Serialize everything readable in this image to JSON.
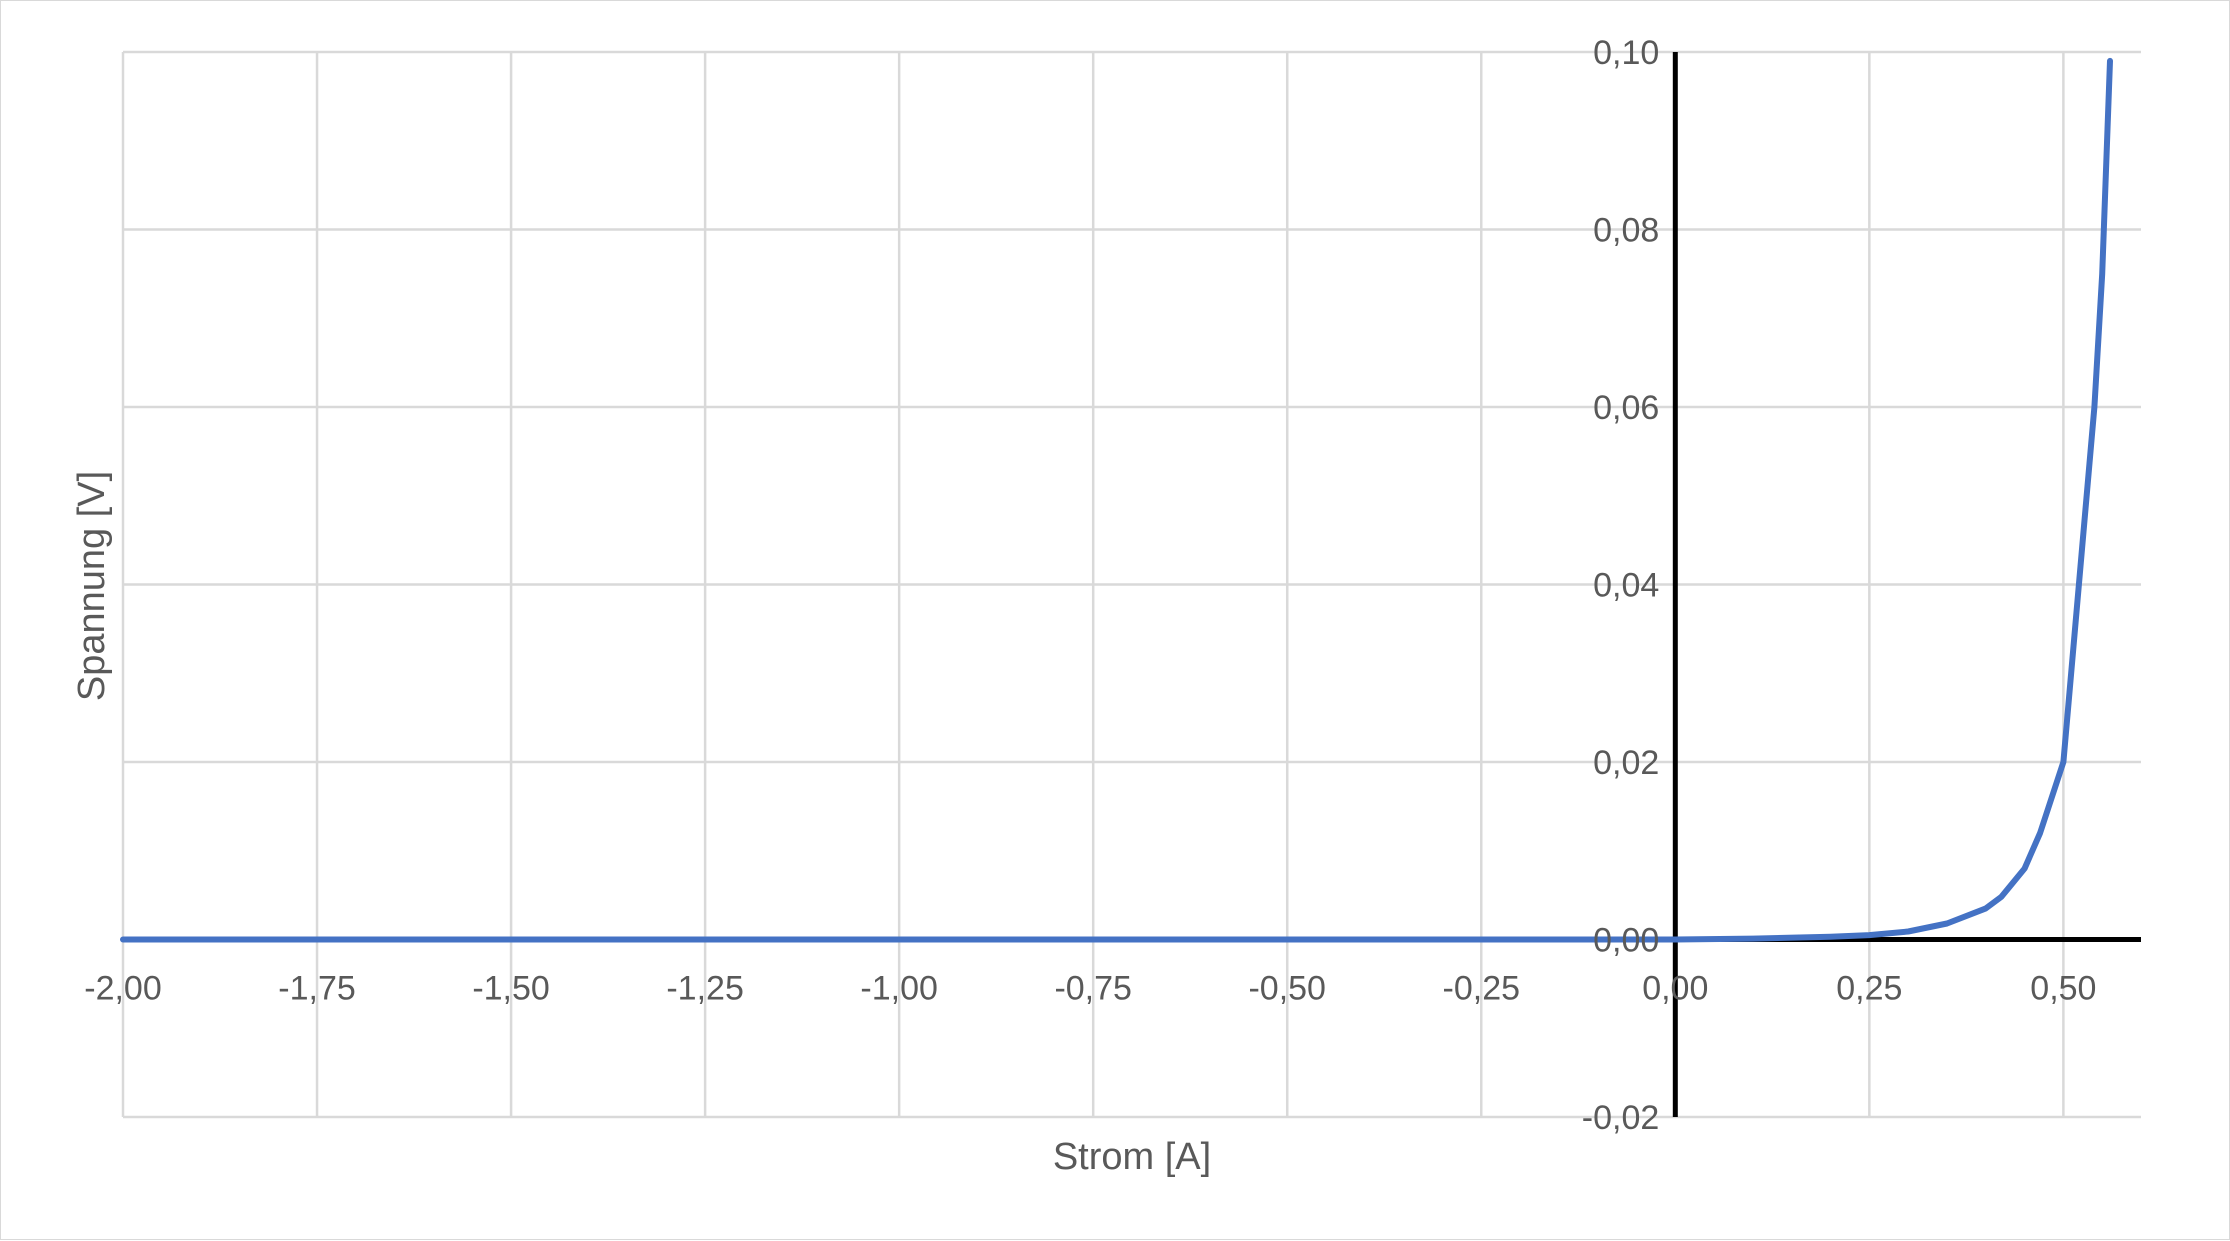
{
  "chart_data": {
    "type": "line",
    "xlabel": "Strom [A]",
    "ylabel": "Spannung [V]",
    "xlim": [
      -2.0,
      0.6
    ],
    "ylim": [
      -0.02,
      0.1
    ],
    "x_ticks": [
      -2.0,
      -1.75,
      -1.5,
      -1.25,
      -1.0,
      -0.75,
      -0.5,
      -0.25,
      0.0,
      0.25,
      0.5
    ],
    "x_tick_labels": [
      "-2,00",
      "-1,75",
      "-1,50",
      "-1,25",
      "-1,00",
      "-0,75",
      "-0,50",
      "-0,25",
      "0,00",
      "0,25",
      "0,50"
    ],
    "y_ticks": [
      -0.02,
      0.0,
      0.02,
      0.04,
      0.06,
      0.08,
      0.1
    ],
    "y_tick_labels": [
      "-0,02",
      "0,00",
      "0,02",
      "0,04",
      "0,06",
      "0,08",
      "0,10"
    ],
    "grid": true,
    "legend": "none",
    "series": [
      {
        "color": "#4472c4",
        "x": [
          -2.0,
          -1.0,
          0.0,
          0.1,
          0.2,
          0.25,
          0.3,
          0.35,
          0.4,
          0.42,
          0.45,
          0.47,
          0.5,
          0.52,
          0.54,
          0.55,
          0.56
        ],
        "y": [
          0.0,
          0.0,
          0.0,
          0.0001,
          0.0003,
          0.0005,
          0.0009,
          0.0018,
          0.0035,
          0.0048,
          0.008,
          0.012,
          0.02,
          0.04,
          0.06,
          0.075,
          0.099
        ]
      }
    ]
  }
}
